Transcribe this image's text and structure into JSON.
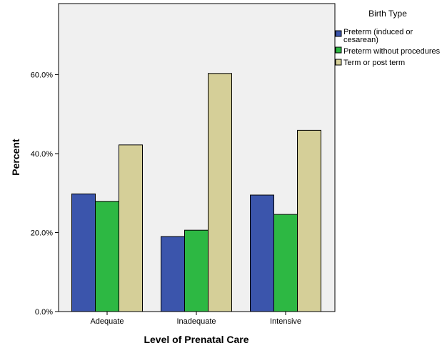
{
  "chart_data": {
    "type": "bar",
    "title": "",
    "xlabel": "Level of Prenatal Care",
    "ylabel": "Percent",
    "categories": [
      "Adequate",
      "Inadequate",
      "Intensive"
    ],
    "series": [
      {
        "name": "Preterm (induced or cesarean)",
        "values": [
          29.8,
          19.0,
          29.5
        ],
        "color": "#3b55ac"
      },
      {
        "name": "Preterm without procedures",
        "values": [
          27.9,
          20.6,
          24.6
        ],
        "color": "#2db843"
      },
      {
        "name": "Term or post term",
        "values": [
          42.2,
          60.3,
          45.9
        ],
        "color": "#d5cf98"
      }
    ],
    "ylim": [
      0,
      78.0
    ],
    "yticks": [
      0,
      20,
      40,
      60
    ],
    "ytick_labels": [
      "0.0%",
      "20.0%",
      "40.0%",
      "60.0%"
    ],
    "grid": false,
    "legend_title": "Birth Type",
    "legend_position": "top-right",
    "plot_background": "#f0f0f0"
  }
}
